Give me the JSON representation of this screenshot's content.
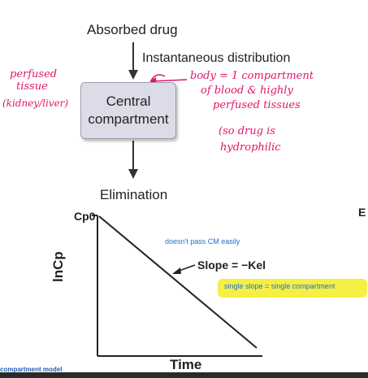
{
  "diagram": {
    "absorbed": "Absorbed drug",
    "instantaneous": "Instantaneous distribution",
    "central_line1": "Central",
    "central_line2": "compartment",
    "elimination": "Elimination"
  },
  "handwritten": {
    "left_line1": "perfused",
    "left_line2": "tissue",
    "left_line3": "(kidney/liver)",
    "right_line1": "body = 1 compartment",
    "right_line2": "of blood & highly",
    "right_line3": "perfused tissues",
    "right_line4": "(so drug is",
    "right_line5": "hydrophilic"
  },
  "graph": {
    "y_axis_label": "lnCp",
    "y_tick_label": "Cp0",
    "x_axis_label": "Time",
    "slope_label": "Slope = −Kel"
  },
  "notes": {
    "blue_note": "doesn't pass CM easily",
    "highlight_note": "single slope = single compartment",
    "side_letter": "E",
    "bottom_caption": "compartment model"
  },
  "colors": {
    "handwriting": "#e2156b",
    "highlight": "#f6ee3a",
    "note_blue": "#1f6fd1"
  }
}
